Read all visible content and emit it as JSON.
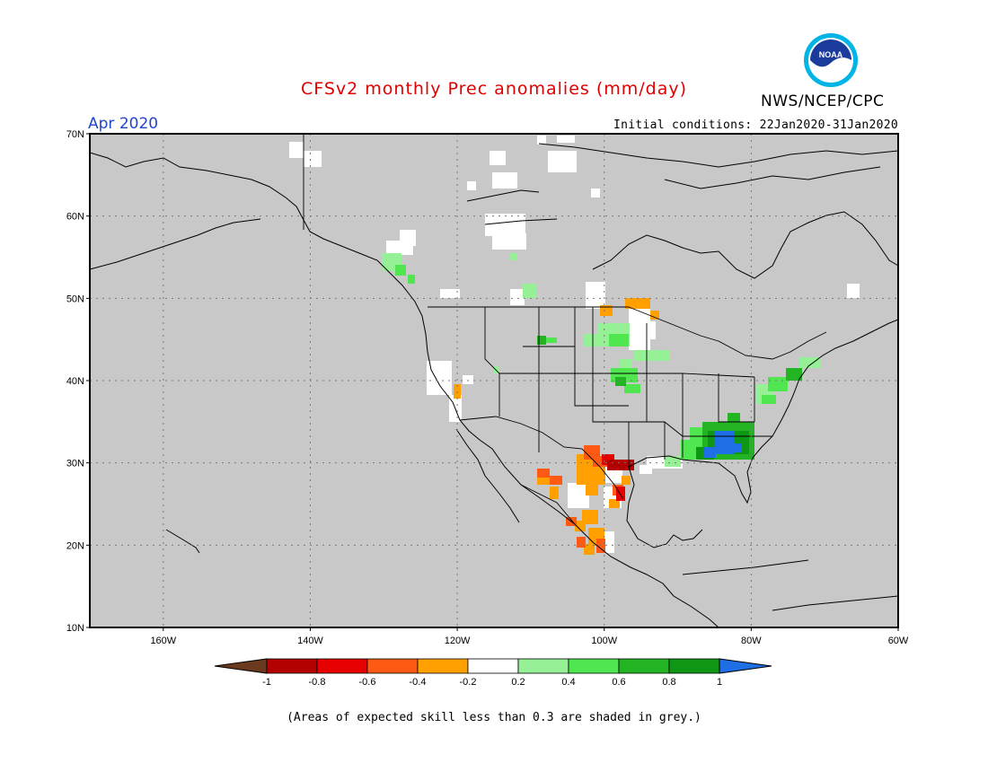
{
  "title": "CFSv2 monthly Prec anomalies (mm/day)",
  "agency": "NWS/NCEP/CPC",
  "logo_text": "NOAA",
  "target_month": "Apr 2020",
  "initial_conditions": "Initial conditions: 22Jan2020-31Jan2020",
  "map": {
    "lon_range": [
      -170,
      -60
    ],
    "lat_range": [
      10,
      70
    ],
    "lat_ticks": [
      {
        "value": 70,
        "label": "70N"
      },
      {
        "value": 60,
        "label": "60N"
      },
      {
        "value": 50,
        "label": "50N"
      },
      {
        "value": 40,
        "label": "40N"
      },
      {
        "value": 30,
        "label": "30N"
      },
      {
        "value": 20,
        "label": "20N"
      },
      {
        "value": 10,
        "label": "10N"
      }
    ],
    "lon_ticks": [
      {
        "value": -160,
        "label": "160W"
      },
      {
        "value": -140,
        "label": "140W"
      },
      {
        "value": -120,
        "label": "120W"
      },
      {
        "value": -100,
        "label": "100W"
      },
      {
        "value": -80,
        "label": "80W"
      },
      {
        "value": -60,
        "label": "60W"
      }
    ],
    "skill_mask_color": "#c8c8c8"
  },
  "colorbar": {
    "labels": [
      "-1",
      "-0.8",
      "-0.6",
      "-0.4",
      "-0.2",
      "0.2",
      "0.4",
      "0.6",
      "0.8",
      "1"
    ],
    "colors": [
      "#6b3a1e",
      "#b30000",
      "#e60000",
      "#ff5a14",
      "#ffa000",
      "#ffffff",
      "#96f096",
      "#50e650",
      "#23b423",
      "#0f9614",
      "#1e6ee6"
    ]
  },
  "footnote": "(Areas of expected skill less than 0.3 are shaded in grey.)"
}
